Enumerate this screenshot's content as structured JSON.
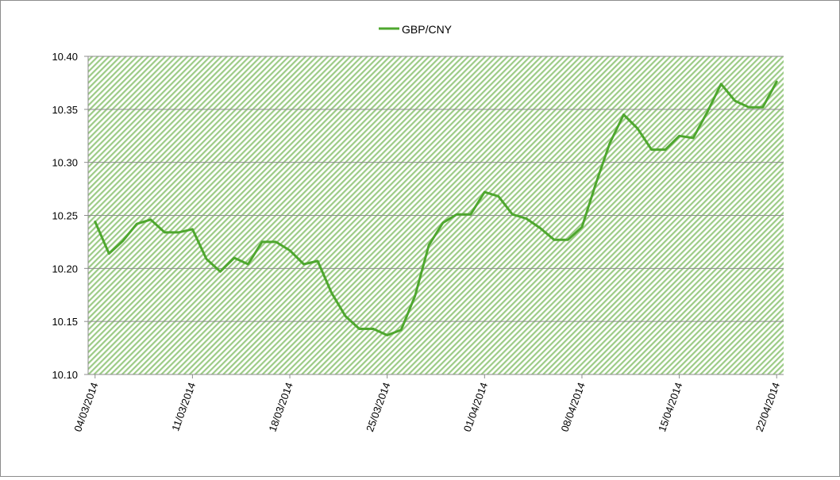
{
  "chart_data": {
    "type": "line",
    "title": "",
    "xlabel": "",
    "ylabel": "",
    "legend": "top-center",
    "grid": true,
    "ylim": [
      10.1,
      10.4
    ],
    "y_ticks": [
      "10.10",
      "10.15",
      "10.20",
      "10.25",
      "10.30",
      "10.35",
      "10.40"
    ],
    "x_tick_labels": [
      "04/03/2014",
      "11/03/2014",
      "18/03/2014",
      "25/03/2014",
      "01/04/2014",
      "08/04/2014",
      "15/04/2014",
      "22/04/2014"
    ],
    "x": [
      "04/03/2014",
      "05/03/2014",
      "06/03/2014",
      "07/03/2014",
      "08/03/2014",
      "09/03/2014",
      "10/03/2014",
      "11/03/2014",
      "12/03/2014",
      "13/03/2014",
      "14/03/2014",
      "15/03/2014",
      "16/03/2014",
      "17/03/2014",
      "18/03/2014",
      "19/03/2014",
      "20/03/2014",
      "21/03/2014",
      "22/03/2014",
      "23/03/2014",
      "24/03/2014",
      "25/03/2014",
      "26/03/2014",
      "27/03/2014",
      "28/03/2014",
      "29/03/2014",
      "30/03/2014",
      "31/03/2014",
      "01/04/2014",
      "02/04/2014",
      "03/04/2014",
      "04/04/2014",
      "05/04/2014",
      "06/04/2014",
      "07/04/2014",
      "08/04/2014",
      "09/04/2014",
      "10/04/2014",
      "11/04/2014",
      "12/04/2014",
      "13/04/2014",
      "14/04/2014",
      "15/04/2014",
      "16/04/2014",
      "17/04/2014",
      "18/04/2014",
      "19/04/2014",
      "20/04/2014",
      "21/04/2014",
      "22/04/2014"
    ],
    "series": [
      {
        "name": "GBP/CNY",
        "color": "#4ea72e",
        "values": [
          10.244,
          10.214,
          10.226,
          10.242,
          10.246,
          10.234,
          10.234,
          10.237,
          10.209,
          10.197,
          10.21,
          10.204,
          10.225,
          10.225,
          10.217,
          10.204,
          10.207,
          10.177,
          10.155,
          10.143,
          10.143,
          10.137,
          10.142,
          10.174,
          10.222,
          10.243,
          10.251,
          10.251,
          10.272,
          10.268,
          10.251,
          10.247,
          10.238,
          10.227,
          10.227,
          10.239,
          10.28,
          10.318,
          10.345,
          10.332,
          10.312,
          10.312,
          10.325,
          10.323,
          10.347,
          10.374,
          10.358,
          10.352,
          10.352,
          10.376
        ]
      }
    ]
  }
}
